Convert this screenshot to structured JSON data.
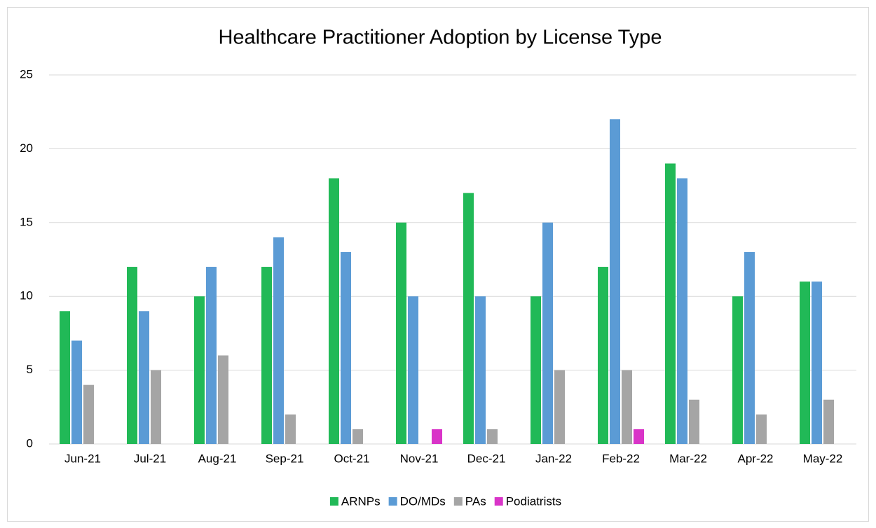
{
  "chart_data": {
    "type": "bar",
    "title": "Healthcare Practitioner Adoption by License Type",
    "categories": [
      "Jun-21",
      "Jul-21",
      "Aug-21",
      "Sep-21",
      "Oct-21",
      "Nov-21",
      "Dec-21",
      "Jan-22",
      "Feb-22",
      "Mar-22",
      "Apr-22",
      "May-22"
    ],
    "series": [
      {
        "name": "ARNPs",
        "color": "#21b957",
        "values": [
          9,
          12,
          10,
          12,
          18,
          15,
          17,
          10,
          12,
          19,
          10,
          11
        ]
      },
      {
        "name": "DO/MDs",
        "color": "#5b9bd5",
        "values": [
          7,
          9,
          12,
          14,
          13,
          10,
          10,
          15,
          22,
          18,
          13,
          11
        ]
      },
      {
        "name": "PAs",
        "color": "#a5a5a5",
        "values": [
          4,
          5,
          6,
          2,
          1,
          0,
          1,
          5,
          5,
          3,
          2,
          3
        ]
      },
      {
        "name": "Podiatrists",
        "color": "#d934c8",
        "values": [
          0,
          0,
          0,
          0,
          0,
          1,
          0,
          0,
          1,
          0,
          0,
          0
        ]
      }
    ],
    "ylim": [
      0,
      25
    ],
    "yticks": [
      0,
      5,
      10,
      15,
      20,
      25
    ],
    "grid": true,
    "legend": "bottom"
  }
}
